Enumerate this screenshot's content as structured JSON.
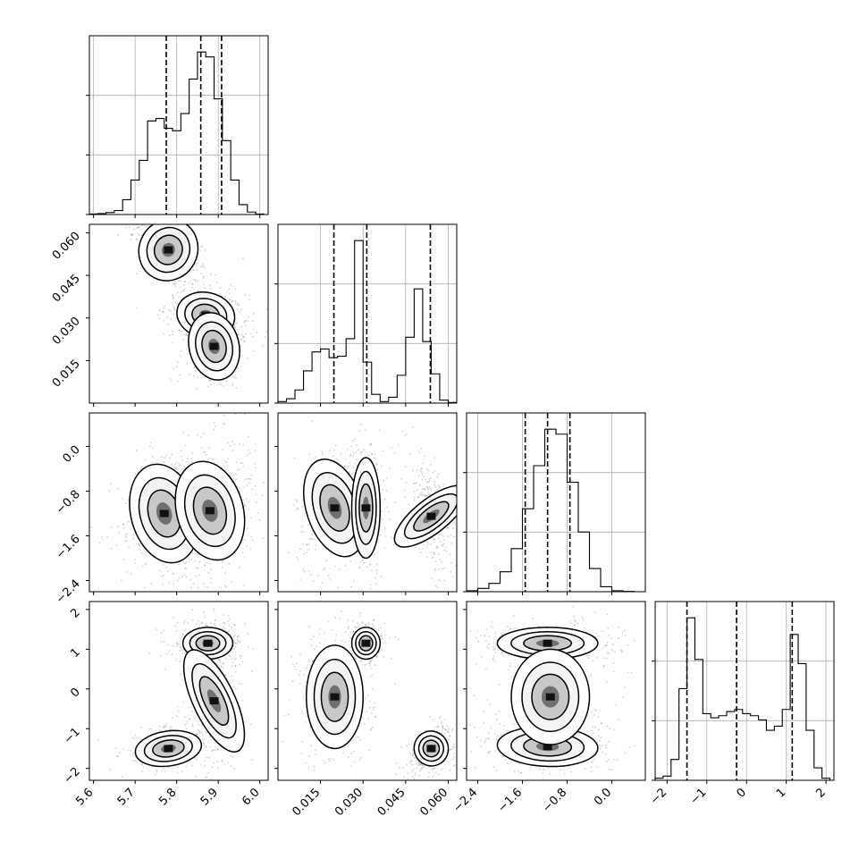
{
  "figure": {
    "type": "corner_plot",
    "title": ""
  },
  "chart_data": {
    "type": "corner",
    "parameters": [
      {
        "index": 0,
        "range": [
          5.59,
          6.02
        ],
        "ticks": [
          5.6,
          5.7,
          5.8,
          5.9,
          6.0
        ],
        "tick_labels": [
          "5.6",
          "5.7",
          "5.8",
          "5.9",
          "6.0"
        ],
        "quantiles": [
          5.775,
          5.858,
          5.908
        ],
        "histogram": {
          "bins": [
            5.59,
            5.61,
            5.63,
            5.65,
            5.67,
            5.69,
            5.71,
            5.73,
            5.75,
            5.77,
            5.79,
            5.81,
            5.83,
            5.85,
            5.87,
            5.89,
            5.91,
            5.93,
            5.95,
            5.97,
            5.99,
            6.01
          ],
          "counts": [
            1,
            2,
            4,
            8,
            30,
            70,
            110,
            190,
            195,
            175,
            170,
            205,
            275,
            330,
            320,
            235,
            150,
            70,
            20,
            5,
            1
          ]
        }
      },
      {
        "index": 1,
        "range": [
          0.0,
          0.063
        ],
        "ticks": [
          0.015,
          0.03,
          0.045,
          0.06
        ],
        "tick_labels": [
          "0.015",
          "0.030",
          "0.045",
          "0.060"
        ],
        "quantiles": [
          0.0197,
          0.0313,
          0.0537
        ],
        "histogram": {
          "bins": [
            0.0,
            0.003,
            0.006,
            0.009,
            0.012,
            0.015,
            0.018,
            0.021,
            0.024,
            0.027,
            0.03,
            0.033,
            0.036,
            0.039,
            0.042,
            0.045,
            0.048,
            0.051,
            0.054,
            0.057,
            0.06,
            0.063
          ],
          "counts": [
            5,
            15,
            45,
            110,
            175,
            185,
            155,
            160,
            220,
            555,
            140,
            30,
            5,
            20,
            95,
            225,
            390,
            210,
            100,
            10,
            2
          ]
        }
      },
      {
        "index": 2,
        "range": [
          -2.6,
          0.6
        ],
        "ticks": [
          -2.4,
          -1.6,
          -0.8,
          0.0
        ],
        "tick_labels": [
          "−2.4",
          "−1.6",
          "−0.8",
          "0.0"
        ],
        "quantiles": [
          -1.55,
          -1.15,
          -0.75
        ],
        "histogram": {
          "bins": [
            -2.6,
            -2.4,
            -2.2,
            -2.0,
            -1.8,
            -1.6,
            -1.4,
            -1.2,
            -1.0,
            -0.8,
            -0.6,
            -0.4,
            -0.2,
            0.0,
            0.2,
            0.4,
            0.6
          ],
          "counts": [
            3,
            10,
            25,
            60,
            130,
            250,
            380,
            490,
            475,
            330,
            180,
            70,
            15,
            3,
            1,
            0
          ]
        }
      },
      {
        "index": 3,
        "range": [
          -2.3,
          2.2
        ],
        "ticks": [
          -2,
          -1,
          0,
          1,
          2
        ],
        "tick_labels": [
          "−2",
          "−1",
          "0",
          "1",
          "2"
        ],
        "quantiles": [
          -1.5,
          -0.25,
          1.15
        ],
        "histogram": {
          "bins": [
            -2.3,
            -2.1,
            -1.9,
            -1.7,
            -1.5,
            -1.3,
            -1.1,
            -0.9,
            -0.7,
            -0.5,
            -0.3,
            -0.1,
            0.1,
            0.3,
            0.5,
            0.7,
            0.9,
            1.1,
            1.3,
            1.5,
            1.7,
            1.9,
            2.1
          ],
          "counts": [
            5,
            10,
            50,
            220,
            390,
            290,
            160,
            150,
            155,
            165,
            170,
            160,
            155,
            145,
            120,
            130,
            170,
            350,
            280,
            120,
            30,
            5
          ]
        }
      }
    ],
    "panels_2d": [
      {
        "row": 1,
        "col": 0,
        "modes": [
          {
            "x": 5.78,
            "y": 0.054,
            "sx": 0.035,
            "sy": 0.0055,
            "rho": -0.55,
            "w": 0.35
          },
          {
            "x": 5.87,
            "y": 0.031,
            "sx": 0.035,
            "sy": 0.004,
            "rho": -0.3,
            "w": 0.35
          },
          {
            "x": 5.89,
            "y": 0.02,
            "sx": 0.03,
            "sy": 0.006,
            "rho": 0.2,
            "w": 0.3
          }
        ]
      },
      {
        "row": 2,
        "col": 0,
        "modes": [
          {
            "x": 5.77,
            "y": -1.2,
            "sx": 0.04,
            "sy": 0.45,
            "rho": 0.2,
            "w": 0.35
          },
          {
            "x": 5.88,
            "y": -1.15,
            "sx": 0.04,
            "sy": 0.45,
            "rho": 0.2,
            "w": 0.65
          }
        ]
      },
      {
        "row": 2,
        "col": 1,
        "modes": [
          {
            "x": 0.02,
            "y": -1.1,
            "sx": 0.005,
            "sy": 0.45,
            "rho": 0.2,
            "w": 0.35
          },
          {
            "x": 0.031,
            "y": -1.1,
            "sx": 0.0025,
            "sy": 0.45,
            "rho": 0.0,
            "w": 0.3
          },
          {
            "x": 0.054,
            "y": -1.25,
            "sx": 0.003,
            "sy": 0.4,
            "rho": -0.6,
            "w": 0.35
          }
        ]
      },
      {
        "row": 3,
        "col": 0,
        "modes": [
          {
            "x": 5.78,
            "y": -1.5,
            "sx": 0.04,
            "sy": 0.22,
            "rho": 0.3,
            "w": 0.3
          },
          {
            "x": 5.875,
            "y": 1.15,
            "sx": 0.03,
            "sy": 0.2,
            "rho": 0.0,
            "w": 0.35
          },
          {
            "x": 5.89,
            "y": -0.3,
            "sx": 0.025,
            "sy": 0.7,
            "rho": 0.2,
            "w": 0.35
          }
        ]
      },
      {
        "row": 3,
        "col": 1,
        "modes": [
          {
            "x": 0.02,
            "y": -0.2,
            "sx": 0.005,
            "sy": 0.65,
            "rho": 0.0,
            "w": 0.35
          },
          {
            "x": 0.031,
            "y": 1.15,
            "sx": 0.0025,
            "sy": 0.2,
            "rho": 0.0,
            "w": 0.3
          },
          {
            "x": 0.054,
            "y": -1.5,
            "sx": 0.003,
            "sy": 0.22,
            "rho": 0.5,
            "w": 0.35
          }
        ]
      },
      {
        "row": 3,
        "col": 2,
        "modes": [
          {
            "x": -1.15,
            "y": 1.15,
            "sx": 0.45,
            "sy": 0.2,
            "rho": 0.0,
            "w": 0.35
          },
          {
            "x": -1.15,
            "y": -1.45,
            "sx": 0.45,
            "sy": 0.25,
            "rho": -0.1,
            "w": 0.35
          },
          {
            "x": -1.1,
            "y": -0.2,
            "sx": 0.35,
            "sy": 0.6,
            "rho": 0.0,
            "w": 0.3
          }
        ]
      }
    ],
    "grid": true
  }
}
